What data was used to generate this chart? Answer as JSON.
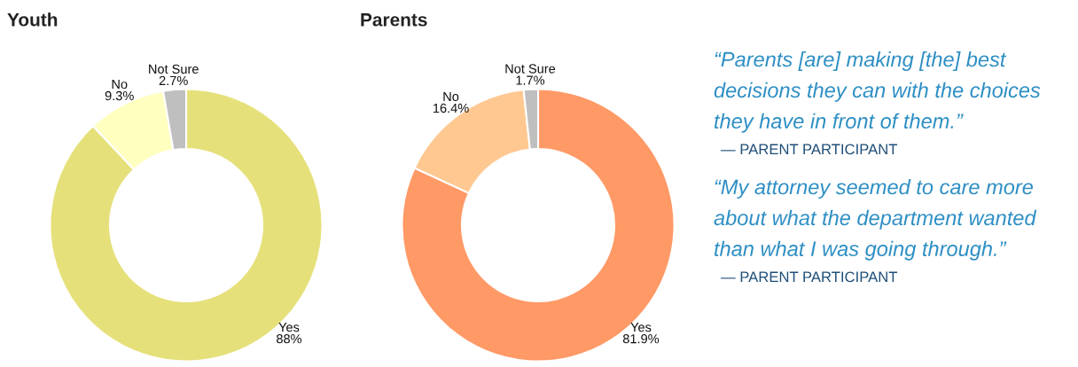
{
  "chart_data": [
    {
      "type": "donut",
      "title": "Youth",
      "categories": [
        "Yes",
        "No",
        "Not Sure"
      ],
      "values": [
        88,
        9.3,
        2.7
      ],
      "value_labels": [
        "88%",
        "9.3%",
        "2.7%"
      ],
      "colors": [
        "#e6e07a",
        "#ffffc0",
        "#bfbfbf"
      ]
    },
    {
      "type": "donut",
      "title": "Parents",
      "categories": [
        "Yes",
        "No",
        "Not Sure"
      ],
      "values": [
        81.9,
        16.4,
        1.7
      ],
      "value_labels": [
        "81.9%",
        "16.4%",
        "1.7%"
      ],
      "colors": [
        "#ff9966",
        "#ffc891",
        "#bfbfbf"
      ]
    },
    {
      "type": "other",
      "annotations": [
        "“Parents [are] making [the] best decisions they can with the choices they have in front of them.”",
        "— PARENT PARTICIPANT",
        "“My attorney seemed to care more about what the department wanted than what I was going through.”",
        "— PARENT PARTICIPANT"
      ]
    }
  ]
}
